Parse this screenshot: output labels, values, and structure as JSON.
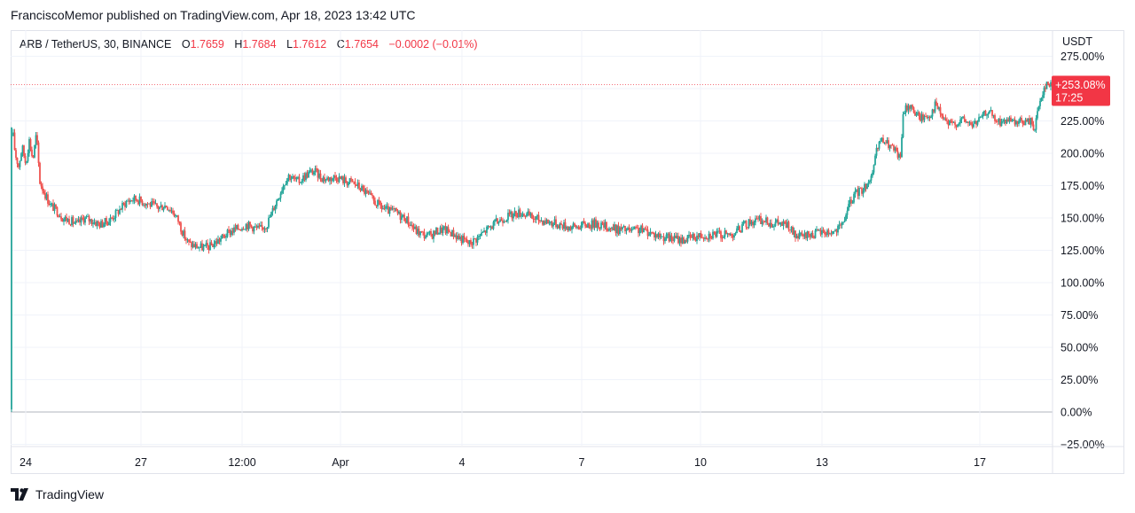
{
  "header": {
    "published": "FranciscoMemor published on TradingView.com, Apr 18, 2023 13:42 UTC"
  },
  "legend": {
    "symbol": "ARB / TetherUS, 30, BINANCE",
    "open_label": "O",
    "open": "1.7659",
    "high_label": "H",
    "high": "1.7684",
    "low_label": "L",
    "low": "1.7612",
    "close_label": "C",
    "close": "1.7654",
    "change": "−0.0002 (−0.01%)"
  },
  "price_axis": {
    "currency": "USDT"
  },
  "last_price_badge": {
    "value": "+253.08%",
    "countdown": "17:25"
  },
  "footer": {
    "brand": "TradingView"
  },
  "colors": {
    "up": "#26a69a",
    "down": "#ef5350",
    "badge": "#f23645",
    "grid": "#f0f3fa"
  },
  "chart_data": {
    "type": "candlestick",
    "y_scale": "percent",
    "y_range": [
      -25,
      275
    ],
    "y_ticks": [
      "275.00%",
      "250.00%",
      "225.00%",
      "200.00%",
      "175.00%",
      "150.00%",
      "125.00%",
      "100.00%",
      "75.00%",
      "50.00%",
      "25.00%",
      "0.00%",
      "−25.00%"
    ],
    "x_tick_labels": [
      "24",
      "27",
      "12:00",
      "Apr",
      "4",
      "7",
      "10",
      "13",
      "17"
    ],
    "series_path_percent": [
      [
        0,
        0
      ],
      [
        1,
        220
      ],
      [
        4,
        200
      ],
      [
        8,
        190
      ],
      [
        12,
        205
      ],
      [
        16,
        192
      ],
      [
        20,
        210
      ],
      [
        24,
        195
      ],
      [
        28,
        215
      ],
      [
        32,
        178
      ],
      [
        38,
        168
      ],
      [
        44,
        160
      ],
      [
        52,
        155
      ],
      [
        58,
        150
      ],
      [
        66,
        148
      ],
      [
        74,
        145
      ],
      [
        82,
        150
      ],
      [
        90,
        148
      ],
      [
        100,
        145
      ],
      [
        110,
        148
      ],
      [
        120,
        155
      ],
      [
        130,
        163
      ],
      [
        140,
        165
      ],
      [
        150,
        162
      ],
      [
        158,
        160
      ],
      [
        166,
        158
      ],
      [
        174,
        160
      ],
      [
        182,
        155
      ],
      [
        188,
        148
      ],
      [
        194,
        137
      ],
      [
        200,
        130
      ],
      [
        208,
        128
      ],
      [
        216,
        127
      ],
      [
        224,
        128
      ],
      [
        232,
        132
      ],
      [
        240,
        136
      ],
      [
        248,
        140
      ],
      [
        256,
        142
      ],
      [
        264,
        145
      ],
      [
        272,
        143
      ],
      [
        280,
        141
      ],
      [
        288,
        145
      ],
      [
        294,
        155
      ],
      [
        300,
        165
      ],
      [
        306,
        175
      ],
      [
        312,
        183
      ],
      [
        318,
        180
      ],
      [
        324,
        178
      ],
      [
        330,
        182
      ],
      [
        336,
        185
      ],
      [
        342,
        186
      ],
      [
        348,
        182
      ],
      [
        354,
        180
      ],
      [
        360,
        181
      ],
      [
        366,
        182
      ],
      [
        372,
        180
      ],
      [
        378,
        178
      ],
      [
        384,
        178
      ],
      [
        390,
        175
      ],
      [
        396,
        172
      ],
      [
        402,
        168
      ],
      [
        408,
        163
      ],
      [
        414,
        160
      ],
      [
        420,
        157
      ],
      [
        426,
        155
      ],
      [
        432,
        155
      ],
      [
        438,
        152
      ],
      [
        444,
        150
      ],
      [
        450,
        145
      ],
      [
        456,
        140
      ],
      [
        462,
        138
      ],
      [
        468,
        136
      ],
      [
        474,
        137
      ],
      [
        480,
        140
      ],
      [
        486,
        141
      ],
      [
        492,
        140
      ],
      [
        498,
        138
      ],
      [
        504,
        135
      ],
      [
        510,
        133
      ],
      [
        516,
        130
      ],
      [
        522,
        133
      ],
      [
        528,
        136
      ],
      [
        534,
        140
      ],
      [
        540,
        143
      ],
      [
        546,
        146
      ],
      [
        552,
        149
      ],
      [
        558,
        151
      ],
      [
        564,
        152
      ],
      [
        570,
        154
      ],
      [
        576,
        154
      ],
      [
        582,
        152
      ],
      [
        588,
        150
      ],
      [
        594,
        149
      ],
      [
        600,
        148
      ],
      [
        606,
        147
      ],
      [
        612,
        146
      ],
      [
        618,
        145
      ],
      [
        624,
        144
      ],
      [
        630,
        143
      ],
      [
        636,
        143
      ],
      [
        642,
        144
      ],
      [
        648,
        145
      ],
      [
        654,
        145
      ],
      [
        660,
        146
      ],
      [
        666,
        144
      ],
      [
        672,
        143
      ],
      [
        678,
        142
      ],
      [
        684,
        141
      ],
      [
        690,
        141
      ],
      [
        696,
        140
      ],
      [
        702,
        140
      ],
      [
        708,
        141
      ],
      [
        714,
        140
      ],
      [
        720,
        139
      ],
      [
        726,
        137
      ],
      [
        732,
        136
      ],
      [
        738,
        135
      ],
      [
        744,
        134
      ],
      [
        750,
        134
      ],
      [
        756,
        133
      ],
      [
        762,
        134
      ],
      [
        768,
        135
      ],
      [
        774,
        136
      ],
      [
        780,
        137
      ],
      [
        786,
        137
      ],
      [
        792,
        138
      ],
      [
        798,
        137
      ],
      [
        804,
        137
      ],
      [
        810,
        137
      ],
      [
        816,
        139
      ],
      [
        822,
        142
      ],
      [
        828,
        145
      ],
      [
        834,
        147
      ],
      [
        840,
        148
      ],
      [
        846,
        148
      ],
      [
        852,
        147
      ],
      [
        858,
        146
      ],
      [
        864,
        146
      ],
      [
        870,
        145
      ],
      [
        876,
        144
      ],
      [
        882,
        137
      ],
      [
        888,
        135
      ],
      [
        894,
        136
      ],
      [
        900,
        137
      ],
      [
        906,
        138
      ],
      [
        912,
        139
      ],
      [
        918,
        139
      ],
      [
        924,
        139
      ],
      [
        930,
        140
      ],
      [
        936,
        143
      ],
      [
        942,
        155
      ],
      [
        948,
        165
      ],
      [
        954,
        170
      ],
      [
        960,
        172
      ],
      [
        966,
        178
      ],
      [
        972,
        185
      ],
      [
        975,
        200
      ],
      [
        980,
        210
      ],
      [
        986,
        208
      ],
      [
        992,
        205
      ],
      [
        998,
        200
      ],
      [
        1002,
        195
      ],
      [
        1006,
        232
      ],
      [
        1012,
        238
      ],
      [
        1018,
        232
      ],
      [
        1024,
        228
      ],
      [
        1030,
        228
      ],
      [
        1036,
        230
      ],
      [
        1042,
        238
      ],
      [
        1048,
        230
      ],
      [
        1054,
        224
      ],
      [
        1060,
        222
      ],
      [
        1066,
        224
      ],
      [
        1072,
        226
      ],
      [
        1078,
        224
      ],
      [
        1084,
        222
      ],
      [
        1090,
        225
      ],
      [
        1096,
        229
      ],
      [
        1102,
        234
      ],
      [
        1108,
        226
      ],
      [
        1114,
        224
      ],
      [
        1120,
        225
      ],
      [
        1126,
        224
      ],
      [
        1132,
        222
      ],
      [
        1138,
        225
      ],
      [
        1144,
        224
      ],
      [
        1150,
        225
      ],
      [
        1154,
        219
      ],
      [
        1158,
        236
      ],
      [
        1162,
        246
      ],
      [
        1166,
        253
      ],
      [
        1172,
        253
      ],
      [
        1176,
        253.08
      ]
    ],
    "last_value": 253.08
  }
}
